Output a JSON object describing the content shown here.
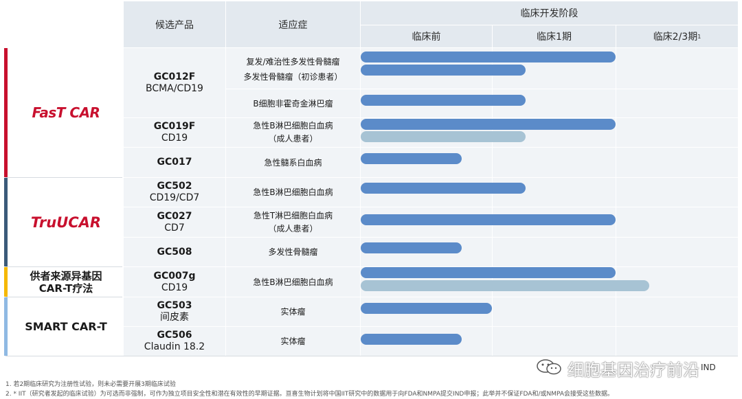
{
  "header": {
    "product": "候选产品",
    "indication": "适应症",
    "stage": "临床开发阶段",
    "pre": "临床前",
    "p1": "临床1期",
    "p23": "临床2/3期",
    "p23_sup": "1"
  },
  "groups": [
    {
      "name": "FasT CAR",
      "color": "#c8102e"
    },
    {
      "name": "TruUCAR",
      "color": "#3b5a7a"
    },
    {
      "name_l1": "供者来源异基因",
      "name_l2": "CAR-T疗法",
      "color": "#f5b800"
    },
    {
      "name": "SMART CAR-T",
      "color": "#8fb9e3"
    }
  ],
  "products": [
    {
      "code": "GC012F",
      "sub": "BCMA/CD19"
    },
    {
      "code": "GC019F",
      "sub": "CD19"
    },
    {
      "code": "GC017",
      "sub": ""
    },
    {
      "code": "GC502",
      "sub": "CD19/CD7"
    },
    {
      "code": "GC027",
      "sub": "CD7"
    },
    {
      "code": "GC508",
      "sub": ""
    },
    {
      "code": "GC007g",
      "sub": "CD19"
    },
    {
      "code": "GC503",
      "sub": "间皮素"
    },
    {
      "code": "GC506",
      "sub": "Claudin 18.2"
    }
  ],
  "indications": [
    {
      "l1": "复发/难治性多发性骨髓瘤",
      "l2": "多发性骨髓瘤（初诊患者）"
    },
    {
      "l1": "B细胞非霍奇金淋巴瘤",
      "l2": ""
    },
    {
      "l1": "急性B淋巴细胞白血病",
      "l2": "（成人患者）"
    },
    {
      "l1": "急性髓系白血病",
      "l2": ""
    },
    {
      "l1": "急性B淋巴细胞白血病",
      "l2": ""
    },
    {
      "l1": "急性T淋巴细胞白血病",
      "l2": "（成人患者）"
    },
    {
      "l1": "多发性骨髓瘤",
      "l2": ""
    },
    {
      "l1": "急性B淋巴细胞白血病",
      "l2": ""
    },
    {
      "l1": "实体瘤",
      "l2": ""
    },
    {
      "l1": "实体瘤",
      "l2": ""
    }
  ],
  "bar_colors": {
    "primary": "#5b8bc9",
    "light": "#a7c3d4"
  },
  "watermark": "细胞基因治疗前沿",
  "watermark_tail": "IND",
  "footnotes": {
    "f1": "1.  若2期临床研究为注册性试验，则未必需要开展3期临床试验",
    "f2": "2. * IIT（研究者发起的临床试验）为可选而非强制，可作为独立项目安全性和潜在有效性的早期证据。亘喜生物计划将中国IIT研究中的数据用于向FDA和NMPA提交IND申报；此举并不保证FDA和/或NMPA会接受这些数据。"
  }
}
